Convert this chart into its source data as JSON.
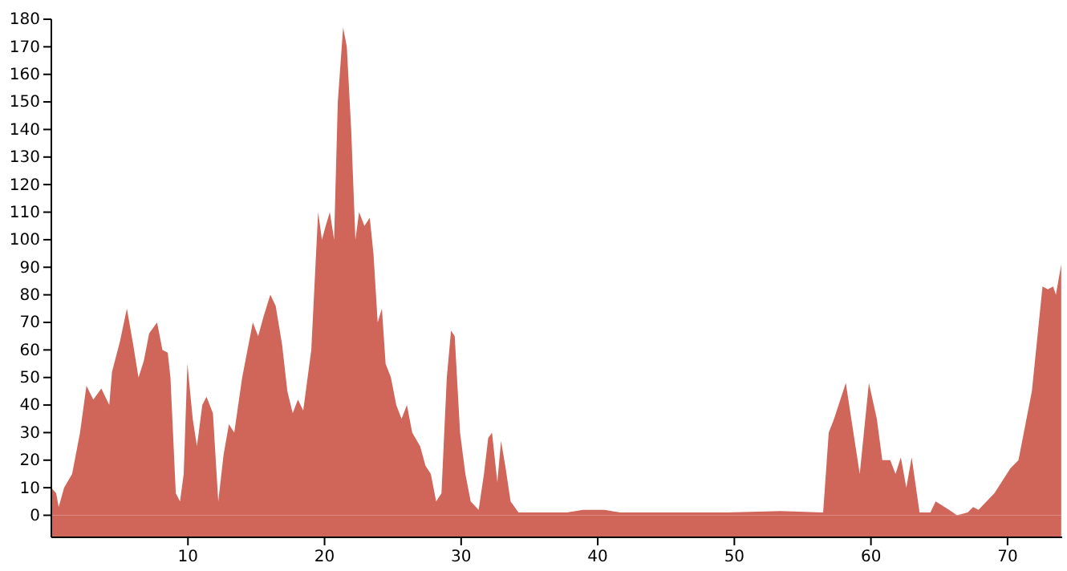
{
  "chart_data": {
    "type": "area",
    "xlim": [
      0,
      74
    ],
    "ylim": [
      -8,
      180
    ],
    "xticks": [
      10,
      20,
      30,
      40,
      50,
      60,
      70
    ],
    "yticks": [
      0,
      10,
      20,
      30,
      40,
      50,
      60,
      70,
      80,
      90,
      100,
      110,
      120,
      130,
      140,
      150,
      160,
      170,
      180
    ],
    "grid": false,
    "x": [
      0,
      0.35,
      0.54,
      0.93,
      1.52,
      2.1,
      2.57,
      3.07,
      3.66,
      4.24,
      4.44,
      5.02,
      5.53,
      5.99,
      6.38,
      6.77,
      7.16,
      7.74,
      8.13,
      8.52,
      8.72,
      9.11,
      9.42,
      9.69,
      9.96,
      10.35,
      10.66,
      11.05,
      11.36,
      11.83,
      12.22,
      12.61,
      13.0,
      13.39,
      13.97,
      14.36,
      14.75,
      15.14,
      15.53,
      16.03,
      16.42,
      16.89,
      17.28,
      17.67,
      18.05,
      18.44,
      19.03,
      19.53,
      19.81,
      20.08,
      20.39,
      20.7,
      20.97,
      21.36,
      21.63,
      21.95,
      22.26,
      22.53,
      22.92,
      23.31,
      23.58,
      23.89,
      24.2,
      24.47,
      24.86,
      25.25,
      25.64,
      26.03,
      26.42,
      27.0,
      27.39,
      27.78,
      28.17,
      28.56,
      28.95,
      29.26,
      29.53,
      29.92,
      30.31,
      30.7,
      31.28,
      31.67,
      31.98,
      32.26,
      32.65,
      32.92,
      33.23,
      33.62,
      34.2,
      35.95,
      37.74,
      38.92,
      40.48,
      41.65,
      49.5,
      53.39,
      56.5,
      56.91,
      57.3,
      58.16,
      58.87,
      59.18,
      59.85,
      60.43,
      60.83,
      61.41,
      61.8,
      62.19,
      62.59,
      62.98,
      63.56,
      64.35,
      64.74,
      65.72,
      66.3,
      67.08,
      67.48,
      67.87,
      69.04,
      70.21,
      70.8,
      71.78,
      72.56,
      72.95,
      73.34,
      73.54,
      73.93
    ],
    "series": [
      {
        "color": "#d0655a",
        "values": [
          10,
          8,
          3,
          10,
          15,
          30,
          47,
          42,
          46,
          40,
          52,
          63,
          75,
          62,
          50,
          56,
          66,
          70,
          60,
          59,
          50,
          8,
          5,
          15,
          55,
          35,
          25,
          40,
          43,
          37,
          5,
          22,
          33,
          30,
          50,
          60,
          70,
          65,
          72,
          80,
          76,
          62,
          45,
          37,
          42,
          38,
          60,
          110,
          100,
          105,
          110,
          100,
          150,
          177,
          170,
          140,
          100,
          110,
          105,
          108,
          95,
          70,
          75,
          55,
          50,
          40,
          35,
          40,
          30,
          25,
          18,
          15,
          5,
          8,
          50,
          67,
          65,
          30,
          15,
          5,
          2,
          15,
          28,
          30,
          12,
          27,
          18,
          5,
          1,
          1,
          1,
          2,
          2,
          1,
          1,
          1.5,
          1,
          30,
          35,
          48,
          25,
          15,
          48,
          35,
          20,
          20,
          15,
          21,
          10,
          21,
          1,
          1,
          5,
          2,
          0,
          1,
          3,
          2,
          8,
          17,
          20,
          45,
          83,
          82,
          83,
          80,
          91
        ]
      }
    ]
  }
}
